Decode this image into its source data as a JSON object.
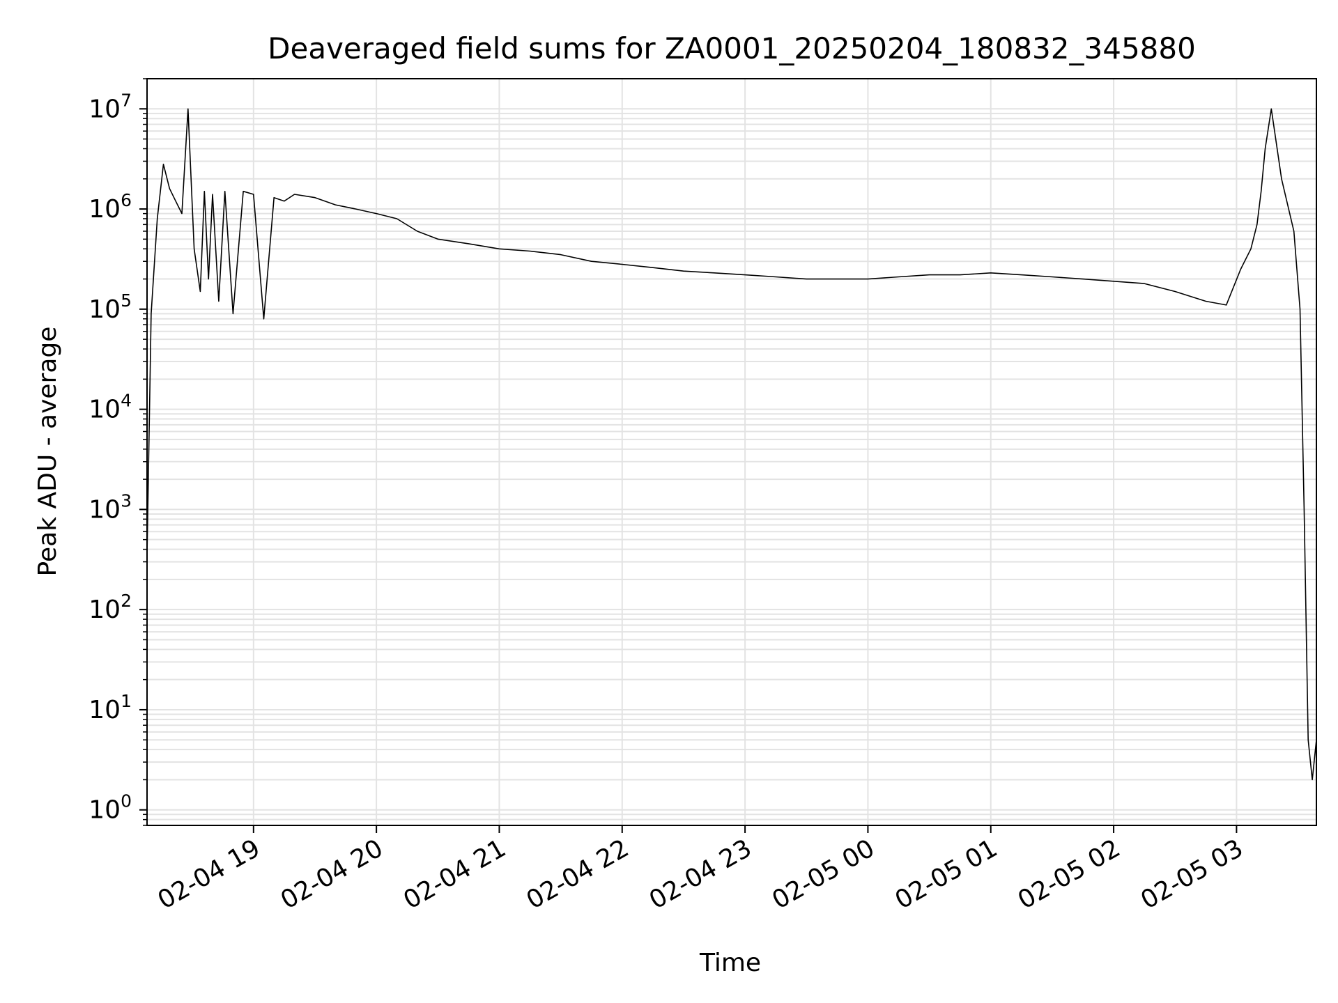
{
  "chart_data": {
    "type": "line",
    "title": "Deaveraged field sums for ZA0001_20250204_180832_345880",
    "xlabel": "Time",
    "ylabel": "Peak ADU - average",
    "yscale": "log",
    "ylim": [
      0.7,
      20000000
    ],
    "xlim": [
      "2025-02-04 18:08",
      "2025-02-05 03:39"
    ],
    "grid": true,
    "line_color": "#000000",
    "grid_color": "#e3e3e3",
    "x_ticks": [
      {
        "t": "2025-02-04 19:00",
        "label": "02-04 19"
      },
      {
        "t": "2025-02-04 20:00",
        "label": "02-04 20"
      },
      {
        "t": "2025-02-04 21:00",
        "label": "02-04 21"
      },
      {
        "t": "2025-02-04 22:00",
        "label": "02-04 22"
      },
      {
        "t": "2025-02-04 23:00",
        "label": "02-04 23"
      },
      {
        "t": "2025-02-05 00:00",
        "label": "02-05 00"
      },
      {
        "t": "2025-02-05 01:00",
        "label": "02-05 01"
      },
      {
        "t": "2025-02-05 02:00",
        "label": "02-05 02"
      },
      {
        "t": "2025-02-05 03:00",
        "label": "02-05 03"
      }
    ],
    "y_ticks": [
      {
        "value": 1,
        "base": "10",
        "exp": "0"
      },
      {
        "value": 10,
        "base": "10",
        "exp": "1"
      },
      {
        "value": 100,
        "base": "10",
        "exp": "2"
      },
      {
        "value": 1000,
        "base": "10",
        "exp": "3"
      },
      {
        "value": 10000,
        "base": "10",
        "exp": "4"
      },
      {
        "value": 100000,
        "base": "10",
        "exp": "5"
      },
      {
        "value": 1000000,
        "base": "10",
        "exp": "6"
      },
      {
        "value": 10000000,
        "base": "10",
        "exp": "7"
      }
    ],
    "series": [
      {
        "x": [
          "2025-02-04 18:08",
          "2025-02-04 18:10",
          "2025-02-04 18:13",
          "2025-02-04 18:16",
          "2025-02-04 18:19",
          "2025-02-04 18:22",
          "2025-02-04 18:25",
          "2025-02-04 18:28",
          "2025-02-04 18:31",
          "2025-02-04 18:34",
          "2025-02-04 18:36",
          "2025-02-04 18:38",
          "2025-02-04 18:40",
          "2025-02-04 18:43",
          "2025-02-04 18:46",
          "2025-02-04 18:50",
          "2025-02-04 18:55",
          "2025-02-04 19:00",
          "2025-02-04 19:05",
          "2025-02-04 19:10",
          "2025-02-04 19:15",
          "2025-02-04 19:20",
          "2025-02-04 19:30",
          "2025-02-04 19:40",
          "2025-02-04 19:50",
          "2025-02-04 20:00",
          "2025-02-04 20:10",
          "2025-02-04 20:20",
          "2025-02-04 20:30",
          "2025-02-04 20:45",
          "2025-02-04 21:00",
          "2025-02-04 21:15",
          "2025-02-04 21:30",
          "2025-02-04 21:45",
          "2025-02-04 22:00",
          "2025-02-04 22:15",
          "2025-02-04 22:30",
          "2025-02-04 22:45",
          "2025-02-04 23:00",
          "2025-02-04 23:15",
          "2025-02-04 23:30",
          "2025-02-04 23:45",
          "2025-02-05 00:00",
          "2025-02-05 00:15",
          "2025-02-05 00:30",
          "2025-02-05 00:45",
          "2025-02-05 01:00",
          "2025-02-05 01:15",
          "2025-02-05 01:30",
          "2025-02-05 01:45",
          "2025-02-05 02:00",
          "2025-02-05 02:15",
          "2025-02-05 02:30",
          "2025-02-05 02:45",
          "2025-02-05 02:55",
          "2025-02-05 03:02",
          "2025-02-05 03:07",
          "2025-02-05 03:10",
          "2025-02-05 03:12",
          "2025-02-05 03:14",
          "2025-02-05 03:17",
          "2025-02-05 03:22",
          "2025-02-05 03:28",
          "2025-02-05 03:31",
          "2025-02-05 03:33",
          "2025-02-05 03:35",
          "2025-02-05 03:37",
          "2025-02-05 03:39"
        ],
        "y": [
          350,
          90000,
          800000,
          2800000,
          1600000,
          1200000,
          900000,
          10000000,
          400000,
          150000,
          1500000,
          200000,
          1400000,
          120000,
          1500000,
          90000,
          1500000,
          1400000,
          80000,
          1300000,
          1200000,
          1400000,
          1300000,
          1100000,
          1000000,
          900000,
          800000,
          600000,
          500000,
          450000,
          400000,
          380000,
          350000,
          300000,
          280000,
          260000,
          240000,
          230000,
          220000,
          210000,
          200000,
          200000,
          200000,
          210000,
          220000,
          220000,
          230000,
          220000,
          210000,
          200000,
          190000,
          180000,
          150000,
          120000,
          110000,
          250000,
          400000,
          700000,
          1500000,
          4000000,
          10000000,
          2000000,
          600000,
          100000,
          1000,
          5,
          2,
          5
        ]
      }
    ]
  }
}
